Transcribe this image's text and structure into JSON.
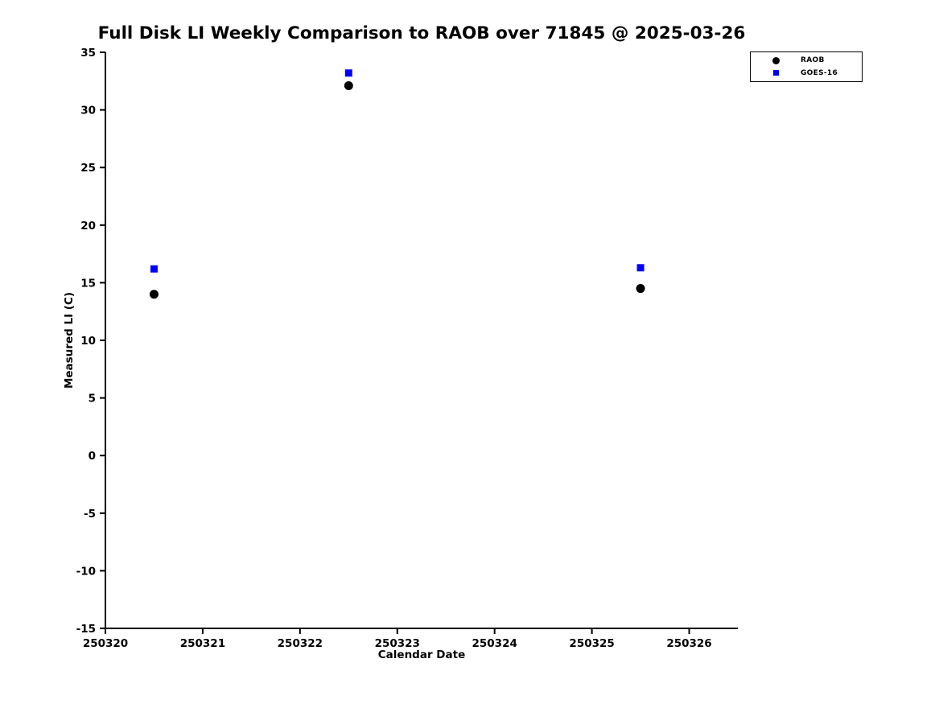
{
  "chart_data": {
    "type": "scatter",
    "title": "Full Disk LI Weekly Comparison to RAOB over 71845 @ 2025-03-26",
    "xlabel": "Calendar Date",
    "ylabel": "Measured LI (C)",
    "xlim": [
      250320,
      250326.5
    ],
    "ylim": [
      -15,
      35
    ],
    "xticks": [
      250320,
      250321,
      250322,
      250323,
      250324,
      250325,
      250326
    ],
    "yticks": [
      -15,
      -10,
      -5,
      0,
      5,
      10,
      15,
      20,
      25,
      30,
      35
    ],
    "grid": false,
    "legend_position": "upper right",
    "series": [
      {
        "name": "RAOB",
        "marker": "circle",
        "color": "#000000",
        "x": [
          250320.5,
          250322.5,
          250325.5
        ],
        "y": [
          14.0,
          32.1,
          14.5
        ]
      },
      {
        "name": "GOES-16",
        "marker": "square",
        "color": "#0000ff",
        "x": [
          250320.5,
          250322.5,
          250325.5
        ],
        "y": [
          16.2,
          33.2,
          16.3
        ]
      }
    ]
  }
}
